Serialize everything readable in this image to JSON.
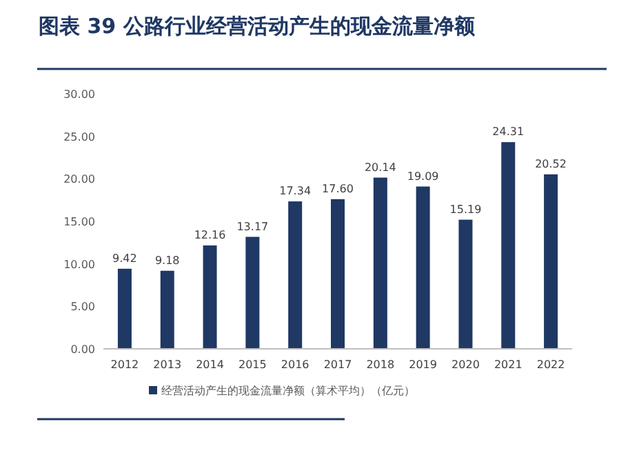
{
  "chart_data": {
    "type": "bar",
    "title": "图表 39   公路行业经营活动产生的现金流量净额",
    "categories": [
      "2012",
      "2013",
      "2014",
      "2015",
      "2016",
      "2017",
      "2018",
      "2019",
      "2020",
      "2021",
      "2022"
    ],
    "series": [
      {
        "name": "经营活动产生的现金流量净额（算术平均）（亿元）",
        "color": "#1f3864",
        "values": [
          9.42,
          9.18,
          12.16,
          13.17,
          17.34,
          17.6,
          20.14,
          19.09,
          15.19,
          24.31,
          20.52
        ],
        "value_labels": [
          "9.42",
          "9.18",
          "12.16",
          "13.17",
          "17.34",
          "17.60",
          "20.14",
          "19.09",
          "15.19",
          "24.31",
          "20.52"
        ]
      }
    ],
    "ylim": [
      0,
      30
    ],
    "yticks": [
      {
        "value": 0,
        "label": "0.00"
      },
      {
        "value": 5,
        "label": "5.00"
      },
      {
        "value": 10,
        "label": "10.00"
      },
      {
        "value": 15,
        "label": "15.00"
      },
      {
        "value": 20,
        "label": "20.00"
      },
      {
        "value": 25,
        "label": "25.00"
      },
      {
        "value": 30,
        "label": "30.00"
      }
    ],
    "legend": "bottom",
    "grid": false
  }
}
